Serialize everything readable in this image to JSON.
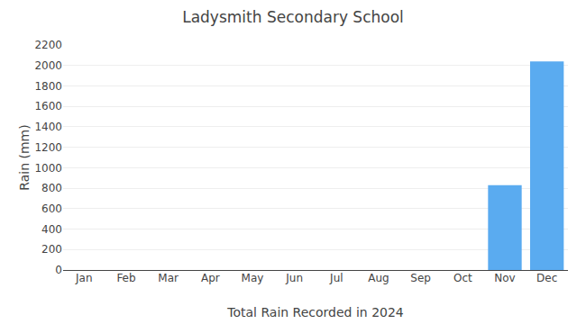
{
  "chart_data": {
    "type": "bar",
    "title": "Ladysmith Secondary School",
    "xlabel": "Total Rain Recorded in 2024",
    "ylabel": "Rain (mm)",
    "categories": [
      "Jan",
      "Feb",
      "Mar",
      "Apr",
      "May",
      "Jun",
      "Jul",
      "Aug",
      "Sep",
      "Oct",
      "Nov",
      "Dec"
    ],
    "values": [
      0,
      0,
      0,
      0,
      0,
      0,
      0,
      0,
      0,
      0,
      830,
      2040
    ],
    "color": "#5aabf0",
    "ylim": [
      0,
      2200
    ],
    "yticks": [
      0,
      200,
      400,
      600,
      800,
      1000,
      1200,
      1400,
      1600,
      1800,
      2000,
      2200
    ],
    "grid": true
  }
}
